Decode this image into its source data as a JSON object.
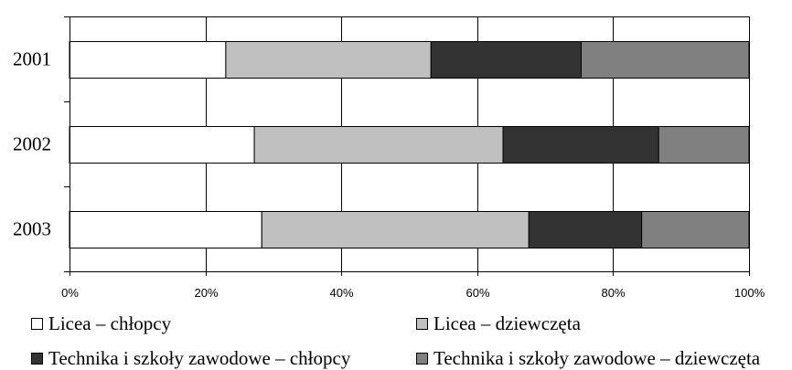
{
  "chart_data": {
    "type": "bar",
    "orientation": "horizontal",
    "stacked": "percent",
    "categories": [
      "2001",
      "2002",
      "2003"
    ],
    "series": [
      {
        "name": "Licea – chłopcy",
        "color": "#ffffff",
        "values": [
          23,
          27.2,
          28.3
        ]
      },
      {
        "name": "Licea – dziewczęta",
        "color": "#c0c0c0",
        "values": [
          30.2,
          36.6,
          39.3
        ]
      },
      {
        "name": "Technika i szkoły zawodowe – chłopcy",
        "color": "#333333",
        "values": [
          22.1,
          22.9,
          16.6
        ]
      },
      {
        "name": "Technika i szkoły zawodowe – dziewczęta",
        "color": "#808080",
        "values": [
          24.7,
          13.3,
          15.8
        ]
      }
    ],
    "xlim": [
      0,
      100
    ],
    "xticks": [
      "0%",
      "20%",
      "40%",
      "60%",
      "80%",
      "100%"
    ],
    "grid": true,
    "legend_position": "bottom"
  }
}
